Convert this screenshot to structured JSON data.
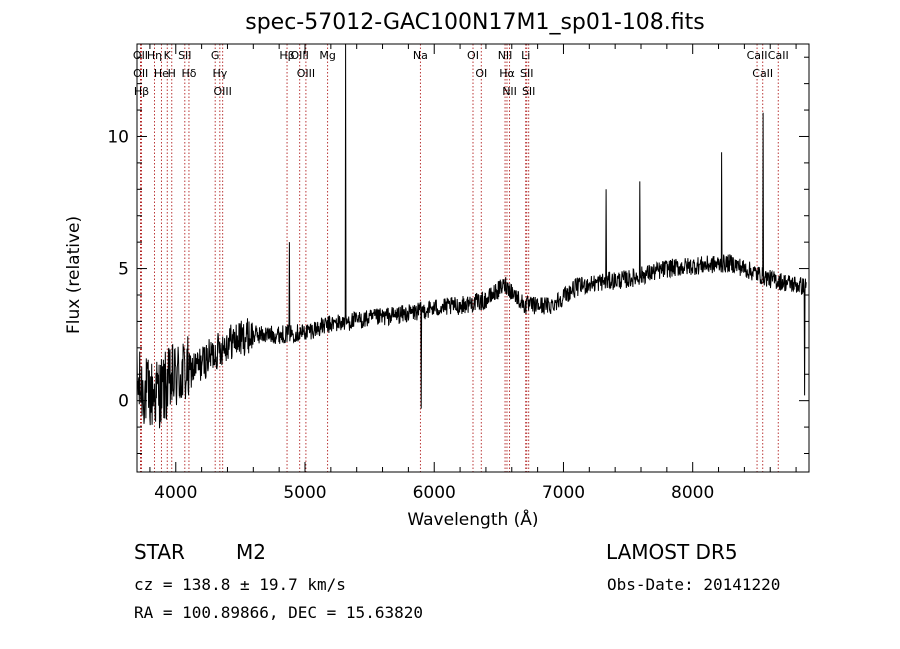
{
  "chart_data": {
    "type": "line",
    "title": "spec-57012-GAC100N17M1_sp01-108.fits",
    "xlabel": "Wavelength (Å)",
    "ylabel": "Flux (relative)",
    "xlim": [
      3700,
      8900
    ],
    "ylim": [
      -2.7,
      13.5
    ],
    "xticks": [
      4000,
      5000,
      6000,
      7000,
      8000
    ],
    "yticks": [
      0,
      5,
      10
    ],
    "grid": false,
    "series_color": "#000000",
    "line_color": "#b22222",
    "lines": [
      {
        "label": "Hβ",
        "x": 3735
      },
      {
        "label": "OII",
        "x": 3727
      },
      {
        "label": "OII",
        "x": 3729
      },
      {
        "label": "Hη",
        "x": 3835
      },
      {
        "label": "K",
        "x": 3934
      },
      {
        "label": "He",
        "x": 3889
      },
      {
        "label": "H",
        "x": 3969
      },
      {
        "label": "Hδ",
        "x": 4102
      },
      {
        "label": "SII",
        "x": 4070
      },
      {
        "label": "OIII",
        "x": 4363
      },
      {
        "label": "Hγ",
        "x": 4341
      },
      {
        "label": "G",
        "x": 4305
      },
      {
        "label": "Hβ",
        "x": 4861
      },
      {
        "label": "OIII",
        "x": 5007
      },
      {
        "label": "OIII",
        "x": 4959
      },
      {
        "label": "Mg",
        "x": 5175
      },
      {
        "label": "Na",
        "x": 5893
      },
      {
        "label": "OI",
        "x": 6300
      },
      {
        "label": "OI",
        "x": 6364
      },
      {
        "label": "Hα",
        "x": 6563
      },
      {
        "label": "NII",
        "x": 6548
      },
      {
        "label": "NII",
        "x": 6583
      },
      {
        "label": "SII",
        "x": 6716
      },
      {
        "label": "Li",
        "x": 6708
      },
      {
        "label": "SII",
        "x": 6731
      },
      {
        "label": "CaII",
        "x": 8498
      },
      {
        "label": "CaII",
        "x": 8542
      },
      {
        "label": "CaII",
        "x": 8662
      }
    ],
    "spikes": [
      {
        "x": 5315,
        "y": 13.5
      },
      {
        "x": 5900,
        "y": -0.3
      },
      {
        "x": 4880,
        "y": 6.0
      },
      {
        "x": 7330,
        "y": 8.0
      },
      {
        "x": 7590,
        "y": 8.3
      },
      {
        "x": 8225,
        "y": 9.4
      },
      {
        "x": 8545,
        "y": 10.9
      },
      {
        "x": 8865,
        "y": 0.2
      }
    ],
    "continuum": [
      {
        "x": 3700,
        "y": 0.6
      },
      {
        "x": 3800,
        "y": 0.2
      },
      {
        "x": 3900,
        "y": 0.4
      },
      {
        "x": 4000,
        "y": 0.9
      },
      {
        "x": 4100,
        "y": 1.1
      },
      {
        "x": 4200,
        "y": 1.4
      },
      {
        "x": 4400,
        "y": 2.2
      },
      {
        "x": 4600,
        "y": 2.5
      },
      {
        "x": 4800,
        "y": 2.5
      },
      {
        "x": 5000,
        "y": 2.6
      },
      {
        "x": 5200,
        "y": 2.9
      },
      {
        "x": 5500,
        "y": 3.1
      },
      {
        "x": 5800,
        "y": 3.3
      },
      {
        "x": 6000,
        "y": 3.5
      },
      {
        "x": 6200,
        "y": 3.6
      },
      {
        "x": 6400,
        "y": 3.8
      },
      {
        "x": 6550,
        "y": 4.4
      },
      {
        "x": 6700,
        "y": 3.6
      },
      {
        "x": 6900,
        "y": 3.6
      },
      {
        "x": 7100,
        "y": 4.3
      },
      {
        "x": 7300,
        "y": 4.5
      },
      {
        "x": 7500,
        "y": 4.6
      },
      {
        "x": 7800,
        "y": 5.0
      },
      {
        "x": 8000,
        "y": 5.1
      },
      {
        "x": 8300,
        "y": 5.2
      },
      {
        "x": 8600,
        "y": 4.6
      },
      {
        "x": 8880,
        "y": 4.3
      }
    ]
  },
  "info": {
    "object_class": "STAR",
    "subclass": "M2",
    "survey": "LAMOST DR5",
    "cz": "cz = 138.8 ± 19.7 km/s",
    "obs_date": "Obs-Date: 20141220",
    "radec": "RA = 100.89866, DEC =  15.63820"
  }
}
